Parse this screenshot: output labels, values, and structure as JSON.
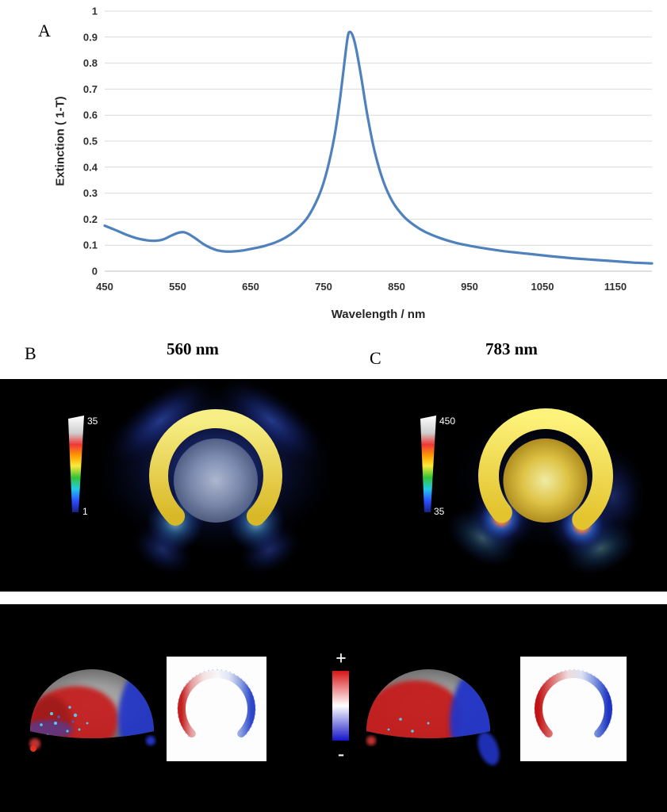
{
  "figure": {
    "panel_a_label": "A",
    "panel_b_label": "B",
    "panel_c_label": "C",
    "panel_b_title": "560 nm",
    "panel_c_title": "783 nm"
  },
  "chart_data": {
    "type": "line",
    "title": "",
    "xlabel": "Wavelength / nm",
    "ylabel": "Extinction ( 1-T)",
    "xlim": [
      450,
      1200
    ],
    "ylim": [
      0,
      1
    ],
    "x_ticks": [
      450,
      550,
      650,
      750,
      850,
      950,
      1050,
      1150
    ],
    "y_ticks": [
      0,
      0.1,
      0.2,
      0.3,
      0.4,
      0.5,
      0.6,
      0.7,
      0.8,
      0.9,
      1
    ],
    "grid": "horizontal",
    "legend": "none",
    "line_color": "#4f81bd",
    "series": [
      {
        "name": "extinction",
        "points": [
          [
            450,
            0.175
          ],
          [
            465,
            0.158
          ],
          [
            480,
            0.14
          ],
          [
            495,
            0.126
          ],
          [
            510,
            0.118
          ],
          [
            520,
            0.117
          ],
          [
            530,
            0.122
          ],
          [
            540,
            0.135
          ],
          [
            550,
            0.147
          ],
          [
            558,
            0.15
          ],
          [
            565,
            0.143
          ],
          [
            575,
            0.125
          ],
          [
            585,
            0.105
          ],
          [
            595,
            0.09
          ],
          [
            605,
            0.08
          ],
          [
            615,
            0.076
          ],
          [
            625,
            0.076
          ],
          [
            640,
            0.08
          ],
          [
            655,
            0.088
          ],
          [
            670,
            0.098
          ],
          [
            685,
            0.112
          ],
          [
            700,
            0.133
          ],
          [
            715,
            0.165
          ],
          [
            730,
            0.215
          ],
          [
            745,
            0.3
          ],
          [
            755,
            0.39
          ],
          [
            765,
            0.52
          ],
          [
            772,
            0.65
          ],
          [
            778,
            0.79
          ],
          [
            783,
            0.9
          ],
          [
            786,
            0.92
          ],
          [
            790,
            0.905
          ],
          [
            795,
            0.85
          ],
          [
            802,
            0.74
          ],
          [
            810,
            0.6
          ],
          [
            820,
            0.46
          ],
          [
            832,
            0.345
          ],
          [
            845,
            0.265
          ],
          [
            860,
            0.21
          ],
          [
            875,
            0.175
          ],
          [
            890,
            0.15
          ],
          [
            910,
            0.127
          ],
          [
            930,
            0.11
          ],
          [
            950,
            0.098
          ],
          [
            975,
            0.086
          ],
          [
            1000,
            0.076
          ],
          [
            1030,
            0.067
          ],
          [
            1060,
            0.058
          ],
          [
            1090,
            0.05
          ],
          [
            1120,
            0.044
          ],
          [
            1150,
            0.038
          ],
          [
            1175,
            0.033
          ],
          [
            1200,
            0.03
          ]
        ]
      }
    ]
  },
  "field_maps": {
    "b": {
      "wavelength": "560 nm",
      "colorbar_max": "35",
      "colorbar_min": "1"
    },
    "c": {
      "wavelength": "783 nm",
      "colorbar_max": "450",
      "colorbar_min": "35"
    }
  },
  "charge_maps": {
    "colorbar_plus": "+",
    "colorbar_minus": "-"
  },
  "colors": {
    "spectrum_line": "#4f81bd",
    "crescent_gold": "#e6c832",
    "panel_background": "#000000",
    "charge_positive": "#d81414",
    "charge_negative": "#1414c8"
  }
}
